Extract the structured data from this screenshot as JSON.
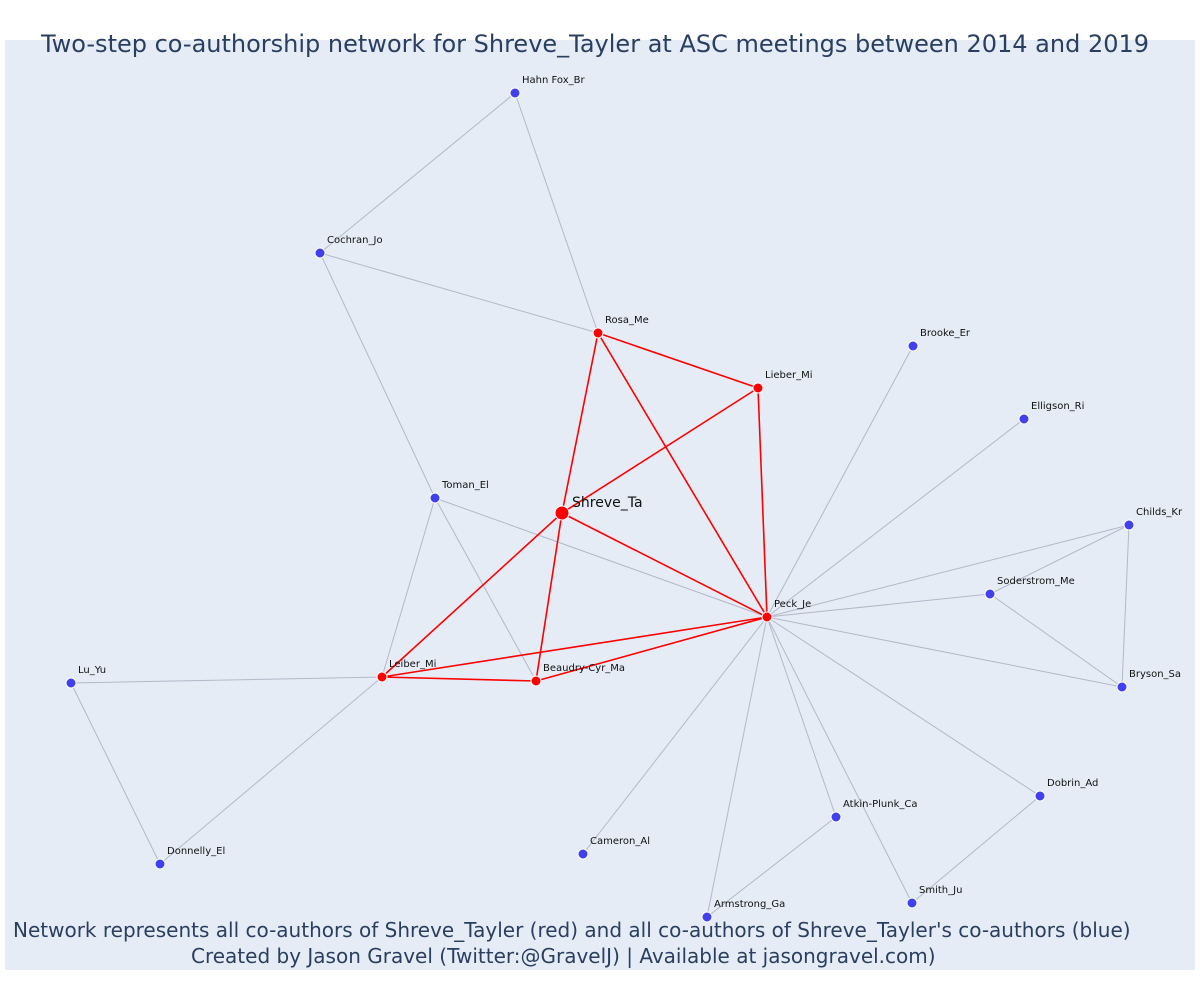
{
  "title": "Two-step co-authorship network for Shreve_Tayler at ASC meetings between 2014 and 2019",
  "caption_line1": "Network represents all co-authors of Shreve_Tayler (red) and all co-authors of Shreve_Tayler's co-authors (blue)",
  "caption_line2": "Created by Jason Gravel (Twitter:@GravelJ) | Available at jasongravel.com)",
  "colors": {
    "background": "#e5ecf6",
    "first_step": "#ff0000",
    "second_step": "#4040ee",
    "first_step_edge": "#ff0000",
    "second_step_edge": "#b3b8c8"
  },
  "nodes": [
    {
      "id": "shreve",
      "label": "Shreve_Ta",
      "group": "focal"
    },
    {
      "id": "rosa",
      "label": "Rosa_Me",
      "group": "first"
    },
    {
      "id": "lieber_top",
      "label": "Lieber_Mi",
      "group": "first"
    },
    {
      "id": "peck",
      "label": "Peck_Je",
      "group": "first"
    },
    {
      "id": "leiber",
      "label": "Leiber_Mi",
      "group": "first"
    },
    {
      "id": "beaudry",
      "label": "Beaudry-Cyr_Ma",
      "group": "first"
    },
    {
      "id": "hahn",
      "label": "Hahn Fox_Br",
      "group": "second"
    },
    {
      "id": "cochran",
      "label": "Cochran_Jo",
      "group": "second"
    },
    {
      "id": "brooke",
      "label": "Brooke_Er",
      "group": "second"
    },
    {
      "id": "elligson",
      "label": "Elligson_Ri",
      "group": "second"
    },
    {
      "id": "childs",
      "label": "Childs_Kr",
      "group": "second"
    },
    {
      "id": "soderstrom",
      "label": "Soderstrom_Me",
      "group": "second"
    },
    {
      "id": "bryson",
      "label": "Bryson_Sa",
      "group": "second"
    },
    {
      "id": "toman",
      "label": "Toman_El",
      "group": "second"
    },
    {
      "id": "luyu",
      "label": "Lu_Yu",
      "group": "second"
    },
    {
      "id": "donnelly",
      "label": "Donnelly_El",
      "group": "second"
    },
    {
      "id": "cameron",
      "label": "Cameron_Al",
      "group": "second"
    },
    {
      "id": "armstrong",
      "label": "Armstrong_Ga",
      "group": "second"
    },
    {
      "id": "atkin",
      "label": "Atkin-Plunk_Ca",
      "group": "second"
    },
    {
      "id": "smith",
      "label": "Smith_Ju",
      "group": "second"
    },
    {
      "id": "dobrin",
      "label": "Dobrin_Ad",
      "group": "second"
    }
  ],
  "edges": [
    {
      "source": "shreve",
      "target": "rosa",
      "group": "first"
    },
    {
      "source": "shreve",
      "target": "lieber_top",
      "group": "first"
    },
    {
      "source": "shreve",
      "target": "peck",
      "group": "first"
    },
    {
      "source": "shreve",
      "target": "leiber",
      "group": "first"
    },
    {
      "source": "shreve",
      "target": "beaudry",
      "group": "first"
    },
    {
      "source": "rosa",
      "target": "lieber_top",
      "group": "first"
    },
    {
      "source": "rosa",
      "target": "peck",
      "group": "first"
    },
    {
      "source": "lieber_top",
      "target": "peck",
      "group": "first"
    },
    {
      "source": "leiber",
      "target": "beaudry",
      "group": "first"
    },
    {
      "source": "leiber",
      "target": "peck",
      "group": "first"
    },
    {
      "source": "beaudry",
      "target": "peck",
      "group": "first"
    },
    {
      "source": "hahn",
      "target": "cochran",
      "group": "second"
    },
    {
      "source": "hahn",
      "target": "rosa",
      "group": "second"
    },
    {
      "source": "cochran",
      "target": "rosa",
      "group": "second"
    },
    {
      "source": "cochran",
      "target": "toman",
      "group": "second"
    },
    {
      "source": "toman",
      "target": "leiber",
      "group": "second"
    },
    {
      "source": "toman",
      "target": "beaudry",
      "group": "second"
    },
    {
      "source": "toman",
      "target": "peck",
      "group": "second"
    },
    {
      "source": "brooke",
      "target": "peck",
      "group": "second"
    },
    {
      "source": "elligson",
      "target": "peck",
      "group": "second"
    },
    {
      "source": "childs",
      "target": "peck",
      "group": "second"
    },
    {
      "source": "childs",
      "target": "soderstrom",
      "group": "second"
    },
    {
      "source": "childs",
      "target": "bryson",
      "group": "second"
    },
    {
      "source": "soderstrom",
      "target": "peck",
      "group": "second"
    },
    {
      "source": "soderstrom",
      "target": "bryson",
      "group": "second"
    },
    {
      "source": "bryson",
      "target": "peck",
      "group": "second"
    },
    {
      "source": "luyu",
      "target": "leiber",
      "group": "second"
    },
    {
      "source": "luyu",
      "target": "donnelly",
      "group": "second"
    },
    {
      "source": "donnelly",
      "target": "leiber",
      "group": "second"
    },
    {
      "source": "cameron",
      "target": "peck",
      "group": "second"
    },
    {
      "source": "armstrong",
      "target": "peck",
      "group": "second"
    },
    {
      "source": "armstrong",
      "target": "atkin",
      "group": "second"
    },
    {
      "source": "atkin",
      "target": "peck",
      "group": "second"
    },
    {
      "source": "smith",
      "target": "peck",
      "group": "second"
    },
    {
      "source": "smith",
      "target": "dobrin",
      "group": "second"
    },
    {
      "source": "dobrin",
      "target": "peck",
      "group": "second"
    }
  ]
}
